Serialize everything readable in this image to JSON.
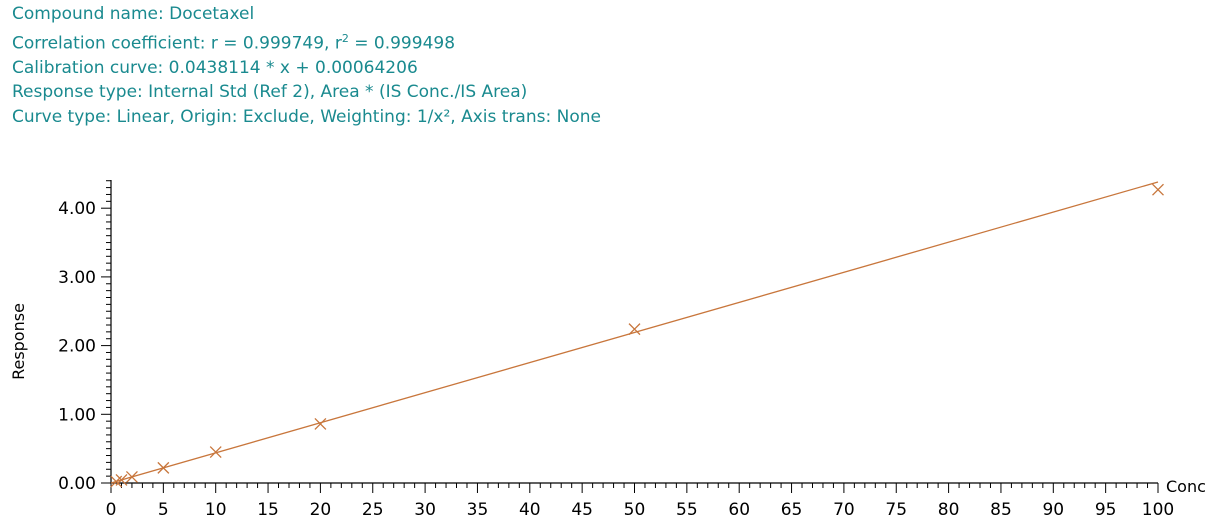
{
  "header": {
    "compound_line": "Compound name: Docetaxel",
    "correlation_prefix": "Correlation coefficient: r = 0.999749, r",
    "correlation_sup": "2",
    "correlation_suffix": " = 0.999498",
    "calibration_line": "Calibration curve: 0.0438114 * x + 0.00064206",
    "response_line": "Response type: Internal Std (Ref 2), Area * (IS Conc./IS Area)",
    "curve_line": "Curve type: Linear, Origin: Exclude, Weighting: 1/x², Axis trans: None"
  },
  "colors": {
    "header_text": "#1a8a8f",
    "curve": "#c8763c",
    "axis": "#000000"
  },
  "chart_data": {
    "type": "scatter",
    "xlabel": "Conc",
    "ylabel": "Response",
    "xlim": [
      0,
      100
    ],
    "ylim": [
      0,
      4.4
    ],
    "x_ticks": [
      0,
      5,
      10,
      15,
      20,
      25,
      30,
      35,
      40,
      45,
      50,
      55,
      60,
      65,
      70,
      75,
      80,
      85,
      90,
      95,
      100
    ],
    "y_ticks": [
      "0.00",
      "1.00",
      "2.00",
      "3.00",
      "4.00"
    ],
    "grid": false,
    "fit": {
      "slope": 0.0438114,
      "intercept": 0.00064206,
      "x_range": [
        0,
        100
      ]
    },
    "series": [
      {
        "x": [
          0.5,
          1,
          2,
          5,
          10,
          20,
          50,
          100
        ],
        "y": [
          0.021,
          0.044,
          0.088,
          0.22,
          0.45,
          0.86,
          2.24,
          4.27
        ]
      }
    ]
  }
}
